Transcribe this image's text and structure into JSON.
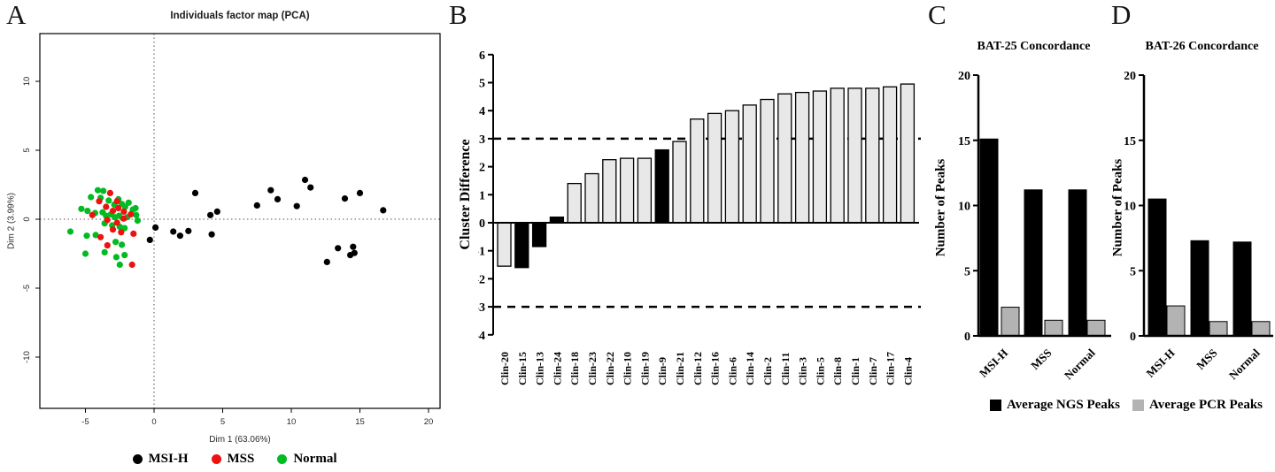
{
  "chart_data": [
    {
      "panel_label": "A",
      "type": "scatter",
      "title": "Individuals factor map (PCA)",
      "xlabel": "Dim 1 (63.06%)",
      "ylabel": "Dim 2 (3.99%)",
      "xlim": [
        -8.3,
        20.8
      ],
      "ylim": [
        -13.7,
        13.5
      ],
      "xticks": [
        -5,
        0,
        5,
        10,
        15,
        20
      ],
      "yticks": [
        -10,
        -5,
        0,
        5,
        10
      ],
      "reference_lines": {
        "x": 0,
        "y": 0
      },
      "legend_position": "bottom",
      "legend": [
        {
          "name": "MSI-H",
          "color": "#000000"
        },
        {
          "name": "MSS",
          "color": "#ee1111"
        },
        {
          "name": "Normal",
          "color": "#00bb22"
        }
      ],
      "series": [
        {
          "name": "Normal",
          "color": "#00bb22",
          "points": [
            [
              -4.1,
              2.1
            ],
            [
              -3.7,
              2.05
            ],
            [
              -4.6,
              1.6
            ],
            [
              -3.9,
              1.55
            ],
            [
              -3.3,
              1.35
            ],
            [
              -2.6,
              1.45
            ],
            [
              -2.9,
              1.05
            ],
            [
              -2.35,
              1.1
            ],
            [
              -2.1,
              0.9
            ],
            [
              -1.85,
              1.2
            ],
            [
              -1.55,
              0.7
            ],
            [
              -1.35,
              0.8
            ],
            [
              -5.3,
              0.75
            ],
            [
              -4.85,
              0.6
            ],
            [
              -4.3,
              0.45
            ],
            [
              -3.75,
              0.5
            ],
            [
              -3.5,
              0.25
            ],
            [
              -3.15,
              0.35
            ],
            [
              -2.85,
              0.15
            ],
            [
              -2.55,
              0.25
            ],
            [
              -2.25,
              0.05
            ],
            [
              -1.95,
              0.15
            ],
            [
              -3.6,
              -0.3
            ],
            [
              -3.05,
              -0.45
            ],
            [
              -2.5,
              -0.55
            ],
            [
              -2.15,
              -0.65
            ],
            [
              -6.1,
              -0.9
            ],
            [
              -4.9,
              -1.2
            ],
            [
              -4.25,
              -1.15
            ],
            [
              -2.8,
              -1.65
            ],
            [
              -2.35,
              -1.85
            ],
            [
              -5.0,
              -2.5
            ],
            [
              -3.6,
              -2.4
            ],
            [
              -2.75,
              -2.75
            ],
            [
              -2.15,
              -2.6
            ],
            [
              -2.5,
              -3.3
            ],
            [
              -1.3,
              0.3
            ],
            [
              -1.2,
              -0.1
            ]
          ]
        },
        {
          "name": "MSS",
          "color": "#ee1111",
          "points": [
            [
              -3.2,
              1.9
            ],
            [
              -4.0,
              1.3
            ],
            [
              -2.7,
              1.3
            ],
            [
              -3.5,
              0.9
            ],
            [
              -4.5,
              0.3
            ],
            [
              -3.0,
              0.6
            ],
            [
              -2.2,
              0.55
            ],
            [
              -1.7,
              0.35
            ],
            [
              -3.4,
              -0.05
            ],
            [
              -2.7,
              -0.25
            ],
            [
              -3.0,
              -0.75
            ],
            [
              -2.4,
              -0.95
            ],
            [
              -3.9,
              -1.3
            ],
            [
              -3.4,
              -1.9
            ],
            [
              -1.5,
              -1.05
            ],
            [
              -1.6,
              -3.3
            ],
            [
              -2.2,
              0.05
            ],
            [
              -2.6,
              0.8
            ]
          ]
        },
        {
          "name": "MSI-H",
          "color": "#000000",
          "points": [
            [
              0.1,
              -0.6
            ],
            [
              -0.3,
              -1.5
            ],
            [
              1.4,
              -0.9
            ],
            [
              1.9,
              -1.2
            ],
            [
              2.5,
              -0.85
            ],
            [
              4.2,
              -1.1
            ],
            [
              3.0,
              1.9
            ],
            [
              4.1,
              0.3
            ],
            [
              4.6,
              0.55
            ],
            [
              7.5,
              1.0
            ],
            [
              8.5,
              2.1
            ],
            [
              9.0,
              1.45
            ],
            [
              10.4,
              0.95
            ],
            [
              11.0,
              2.85
            ],
            [
              11.4,
              2.3
            ],
            [
              13.9,
              1.5
            ],
            [
              15.0,
              1.9
            ],
            [
              16.7,
              0.65
            ],
            [
              12.6,
              -3.1
            ],
            [
              13.4,
              -2.1
            ],
            [
              14.5,
              -2.0
            ],
            [
              14.3,
              -2.6
            ],
            [
              14.6,
              -2.45
            ]
          ]
        }
      ]
    },
    {
      "panel_label": "B",
      "type": "bar",
      "ylabel": "Cluster Difference",
      "ylim": [
        -4,
        6
      ],
      "yticks": [
        6,
        5,
        4,
        3,
        2,
        1,
        0,
        -1,
        -2,
        -3,
        -4
      ],
      "threshold_lines": [
        3,
        -3
      ],
      "categories": [
        "Clin-20",
        "Clin-15",
        "Clin-13",
        "Clin-24",
        "Clin-18",
        "Clin-23",
        "Clin-22",
        "Clin-10",
        "Clin-19",
        "Clin-9",
        "Clin-21",
        "Clin-12",
        "Clin-16",
        "Clin-6",
        "Clin-14",
        "Clin-2",
        "Clin-11",
        "Clin-3",
        "Clin-5",
        "Clin-8",
        "Clin-1",
        "Clin-7",
        "Clin-17",
        "Clin-4"
      ],
      "values": [
        -1.55,
        -1.6,
        -0.85,
        0.2,
        1.4,
        1.75,
        2.25,
        2.3,
        2.3,
        2.6,
        2.9,
        3.7,
        3.9,
        4.0,
        4.2,
        4.4,
        4.6,
        4.65,
        4.7,
        4.8,
        4.8,
        4.8,
        4.85,
        4.95
      ],
      "black_bars": [
        "Clin-15",
        "Clin-13",
        "Clin-24",
        "Clin-9"
      ],
      "bar_fill": "#e8e8e8",
      "highlight_fill": "#000000"
    },
    {
      "panel_label": "C",
      "type": "grouped-bar",
      "title": "BAT-25 Concordance",
      "ylabel": "Number of Peaks",
      "ylim": [
        0,
        20
      ],
      "yticks": [
        20,
        15,
        10,
        5,
        0
      ],
      "categories": [
        "MSI-H",
        "MSS",
        "Normal"
      ],
      "series": [
        {
          "name": "Average NGS Peaks",
          "color": "#000000",
          "values": [
            15.1,
            11.2,
            11.2
          ]
        },
        {
          "name": "Average PCR Peaks",
          "color": "#b3b3b3",
          "values": [
            2.2,
            1.2,
            1.2
          ]
        }
      ]
    },
    {
      "panel_label": "D",
      "type": "grouped-bar",
      "title": "BAT-26 Concordance",
      "ylabel": "Number of Peaks",
      "ylim": [
        0,
        20
      ],
      "yticks": [
        20,
        15,
        10,
        5,
        0
      ],
      "categories": [
        "MSI-H",
        "MSS",
        "Normal"
      ],
      "series": [
        {
          "name": "Average NGS Peaks",
          "color": "#000000",
          "values": [
            10.5,
            7.3,
            7.2
          ]
        },
        {
          "name": "Average PCR Peaks",
          "color": "#b3b3b3",
          "values": [
            2.3,
            1.1,
            1.1
          ]
        }
      ]
    }
  ],
  "cd_legend": [
    {
      "label": "Average NGS Peaks",
      "color": "#000000"
    },
    {
      "label": "Average PCR Peaks",
      "color": "#b3b3b3"
    }
  ]
}
